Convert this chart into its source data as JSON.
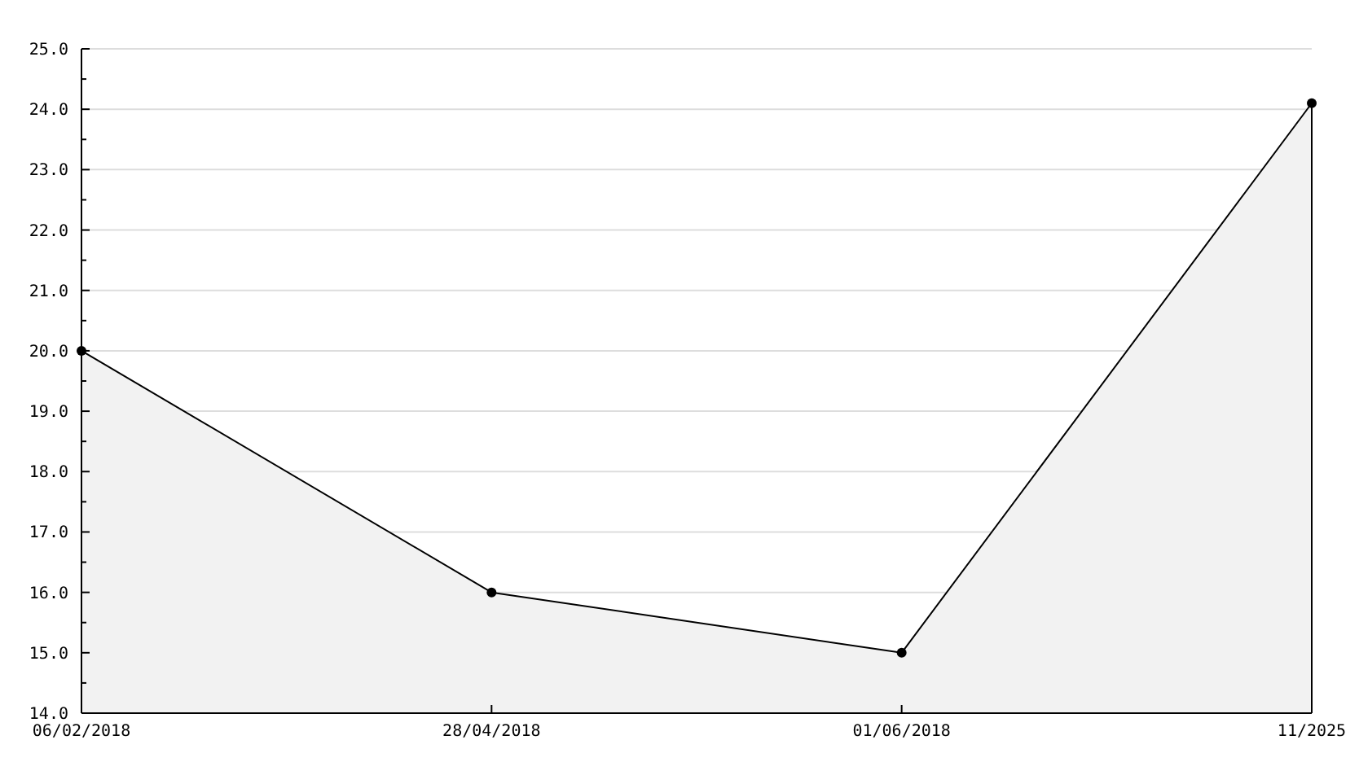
{
  "chart_data": {
    "type": "area",
    "categories": [
      "06/02/2018",
      "28/04/2018",
      "01/06/2018",
      "11/2025"
    ],
    "series": [
      {
        "color": "#000000",
        "values": [
          20.0,
          16.0,
          15.0,
          24.1
        ]
      }
    ],
    "ylim": [
      14,
      25
    ],
    "yticks": [
      {
        "value": 14,
        "label": "14.0"
      },
      {
        "value": 14.5,
        "label": null
      },
      {
        "value": 15,
        "label": "15.0"
      },
      {
        "value": 15.5,
        "label": null
      },
      {
        "value": 16,
        "label": "16.0"
      },
      {
        "value": 16.5,
        "label": null
      },
      {
        "value": 17,
        "label": "17.0"
      },
      {
        "value": 17.5,
        "label": null
      },
      {
        "value": 18,
        "label": "18.0"
      },
      {
        "value": 18.5,
        "label": null
      },
      {
        "value": 19,
        "label": "19.0"
      },
      {
        "value": 19.5,
        "label": null
      },
      {
        "value": 20,
        "label": "20.0"
      },
      {
        "value": 20.5,
        "label": null
      },
      {
        "value": 21,
        "label": "21.0"
      },
      {
        "value": 21.5,
        "label": null
      },
      {
        "value": 22,
        "label": "22.0"
      },
      {
        "value": 22.5,
        "label": null
      },
      {
        "value": 23,
        "label": "23.0"
      },
      {
        "value": 23.5,
        "label": null
      },
      {
        "value": 24,
        "label": "24.0"
      },
      {
        "value": 24.5,
        "label": null
      },
      {
        "value": 25,
        "label": "25.0"
      }
    ],
    "grid": "y",
    "marker": "circle",
    "line_style": "solid"
  }
}
